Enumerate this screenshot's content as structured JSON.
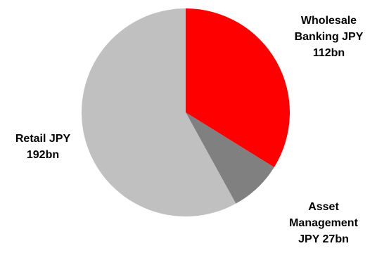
{
  "chart_data": {
    "type": "pie",
    "title": "",
    "units": "JPY bn",
    "slices": [
      {
        "name": "Wholesale Banking",
        "value": 112,
        "color": "#ff0000",
        "label_lines": [
          "Wholesale",
          "Banking JPY",
          "112bn"
        ]
      },
      {
        "name": "Asset Management",
        "value": 27,
        "color": "#808080",
        "label_lines": [
          "Asset",
          "Management",
          "JPY 27bn"
        ]
      },
      {
        "name": "Retail",
        "value": 192,
        "color": "#c0c0c0",
        "label_lines": [
          "Retail JPY",
          "192bn"
        ]
      }
    ],
    "start_angle": "12 o'clock",
    "direction": "clockwise",
    "legend": "none",
    "data_labels": "outside"
  }
}
